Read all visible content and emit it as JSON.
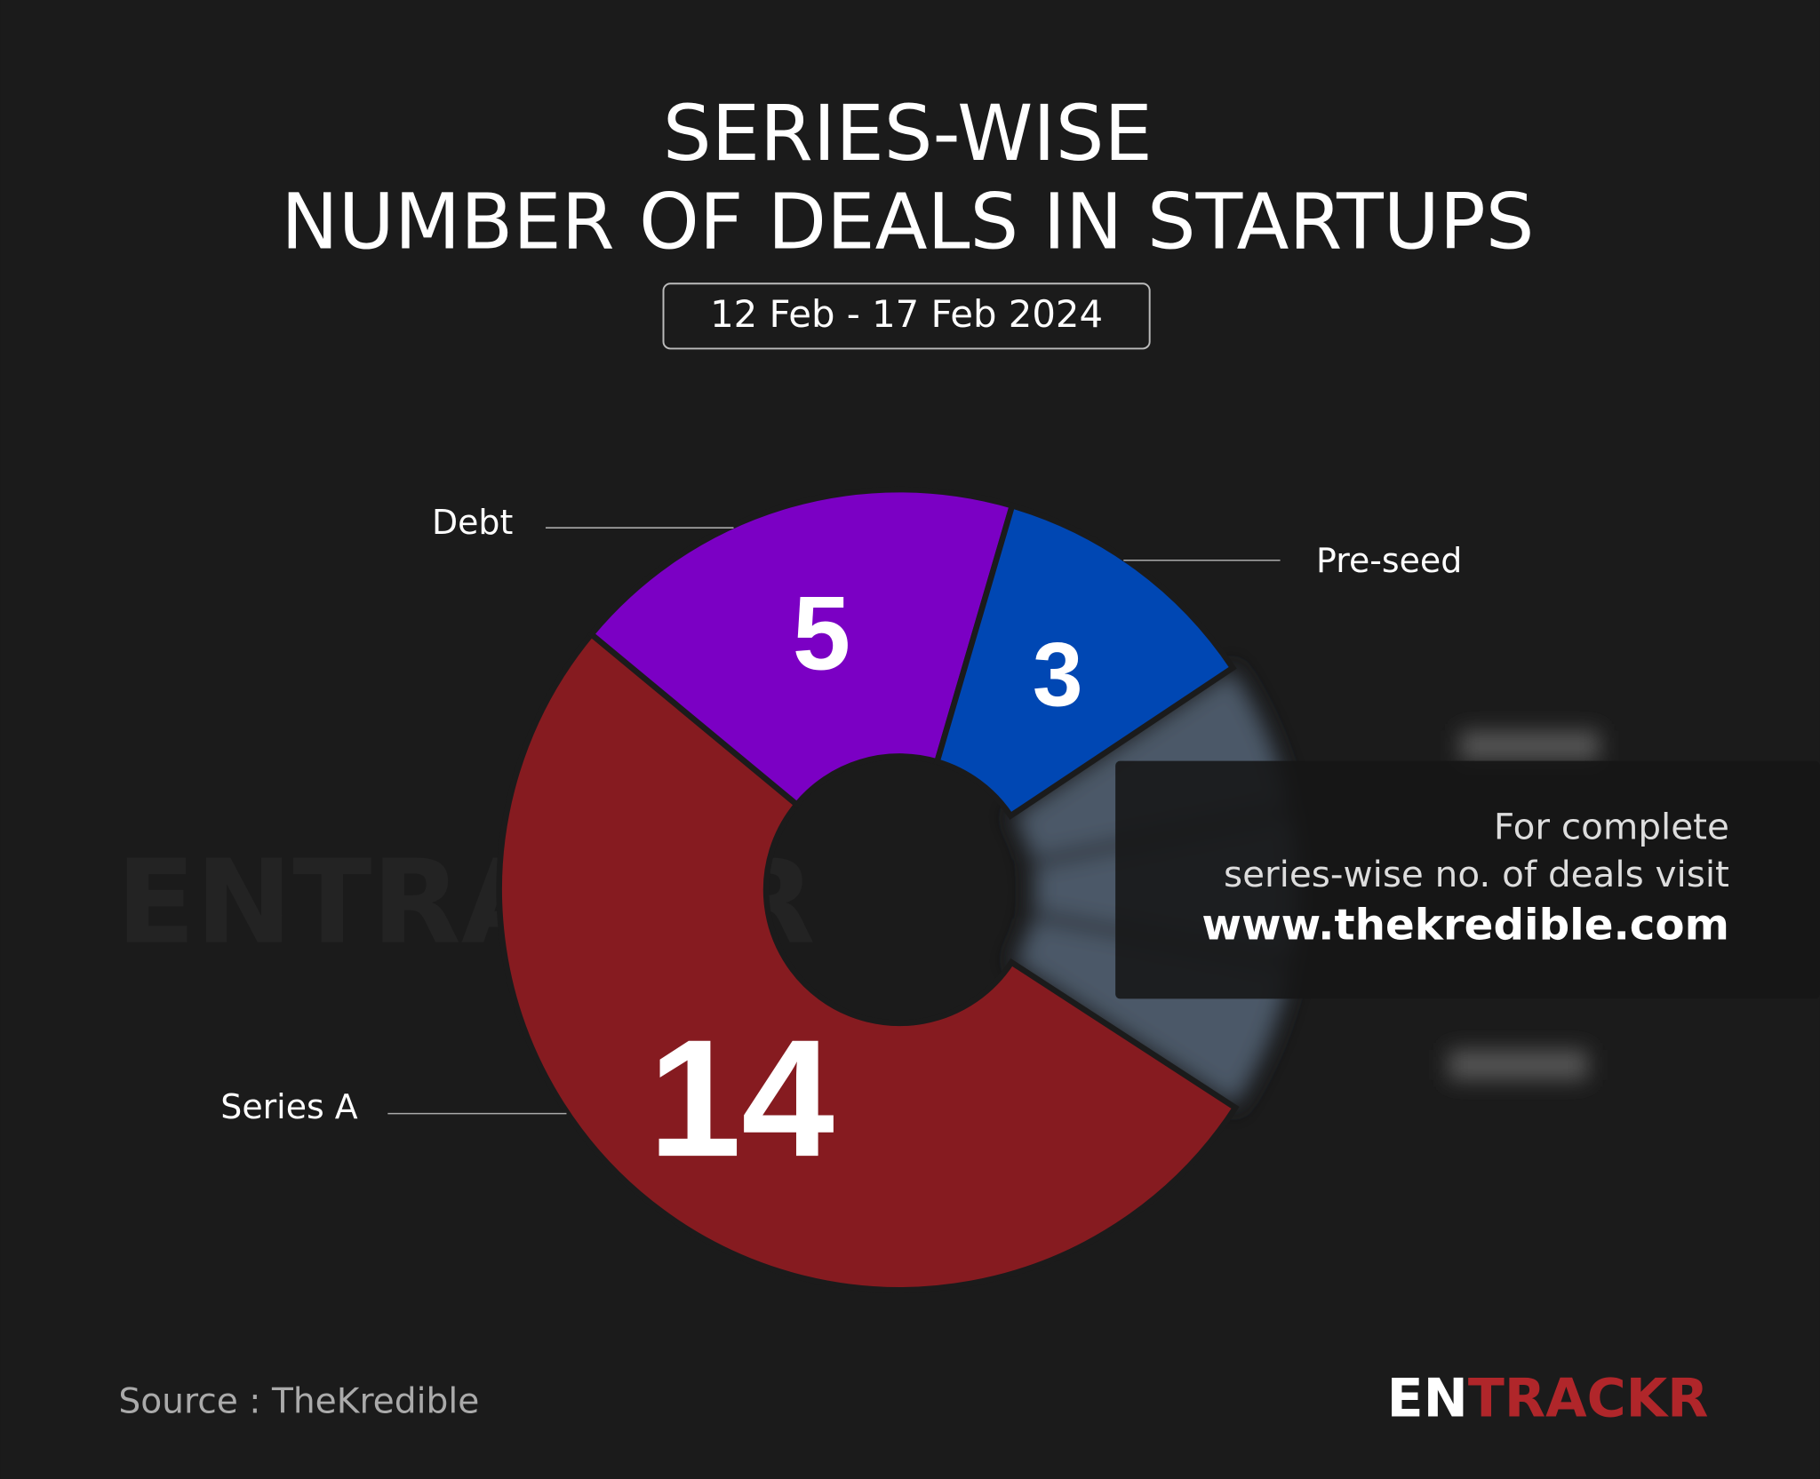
{
  "chart_data": {
    "type": "donut",
    "title": [
      "SERIES-WISE",
      "NUMBER OF DEALS IN STARTUPS"
    ],
    "subtitle": "12 Feb - 17 Feb 2024",
    "categories": [
      "Series A",
      "Debt",
      "Pre-seed"
    ],
    "values": [
      14,
      5,
      3
    ],
    "colors": [
      "#861b20",
      "#7b00c4",
      "#0047b3"
    ],
    "note": [
      "For complete",
      "series-wise no. of deals visit",
      "www.thekredible.com"
    ],
    "source": "Source : TheKredible",
    "watermark": "ENTRACKR",
    "brand": [
      "EN",
      "TRACKR"
    ]
  }
}
